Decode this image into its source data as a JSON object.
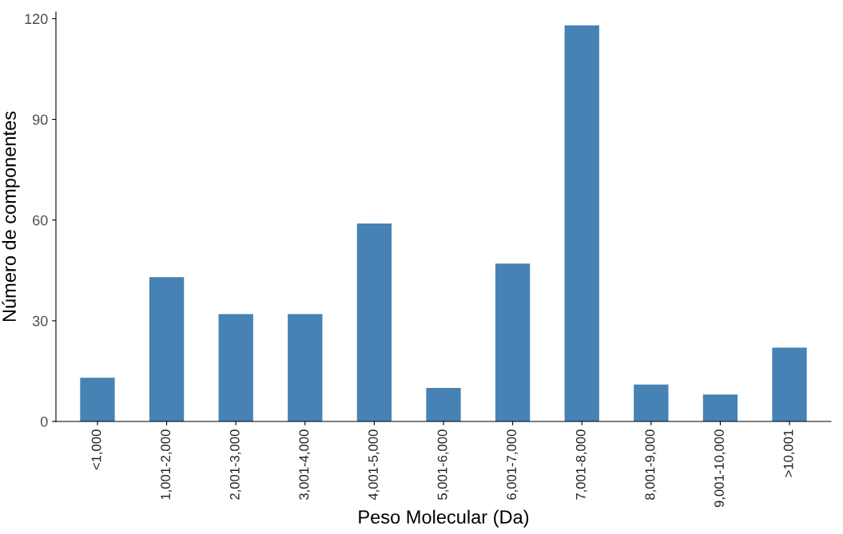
{
  "chart_data": {
    "type": "bar",
    "xlabel": "Peso Molecular (Da)",
    "ylabel": "Número de componentes",
    "categories": [
      "<1,000",
      "1,001-2,000",
      "2,001-3,000",
      "3,001-4,000",
      "4,001-5,000",
      "5,001-6,000",
      "6,001-7,000",
      "7,001-8,000",
      "8,001-9,000",
      "9,001-10,000",
      ">10,001"
    ],
    "values": [
      13,
      43,
      32,
      32,
      59,
      10,
      47,
      118,
      11,
      8,
      22
    ],
    "color": "#4682b4",
    "ylim": [
      0,
      122
    ],
    "yticks": [
      0,
      30,
      60,
      90,
      120
    ],
    "grid": false,
    "legend": false
  }
}
